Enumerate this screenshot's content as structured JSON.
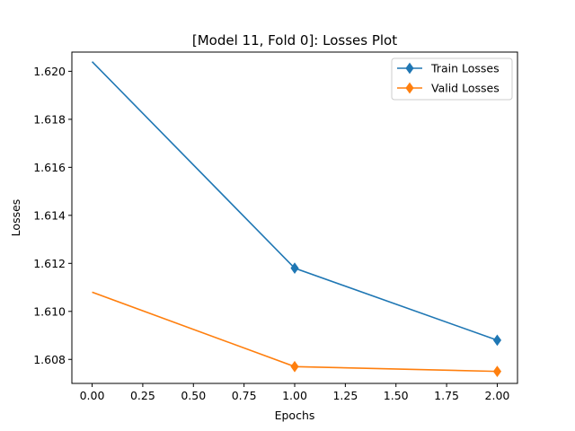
{
  "chart_data": {
    "type": "line",
    "title": "[Model 11, Fold 0]: Losses Plot",
    "xlabel": "Epochs",
    "ylabel": "Losses",
    "xlim": [
      -0.1,
      2.1
    ],
    "ylim": [
      1.607,
      1.6208
    ],
    "x": [
      0,
      1,
      2
    ],
    "x_ticks": [
      0.0,
      0.25,
      0.5,
      0.75,
      1.0,
      1.25,
      1.5,
      1.75,
      2.0
    ],
    "x_tick_labels": [
      "0.00",
      "0.25",
      "0.50",
      "0.75",
      "1.00",
      "1.25",
      "1.50",
      "1.75",
      "2.00"
    ],
    "y_ticks": [
      1.608,
      1.61,
      1.612,
      1.614,
      1.616,
      1.618,
      1.62
    ],
    "y_tick_labels": [
      "1.608",
      "1.610",
      "1.612",
      "1.614",
      "1.616",
      "1.618",
      "1.620"
    ],
    "grid": false,
    "legend_position": "top-right",
    "series": [
      {
        "name": "Train Losses",
        "values": [
          1.6204,
          1.6118,
          1.6088
        ],
        "color": "#1f77b4",
        "marker": "diamond-last-points"
      },
      {
        "name": "Valid Losses",
        "values": [
          1.6108,
          1.6077,
          1.6075
        ],
        "color": "#ff7f0e",
        "marker": "diamond-last-points"
      }
    ]
  }
}
